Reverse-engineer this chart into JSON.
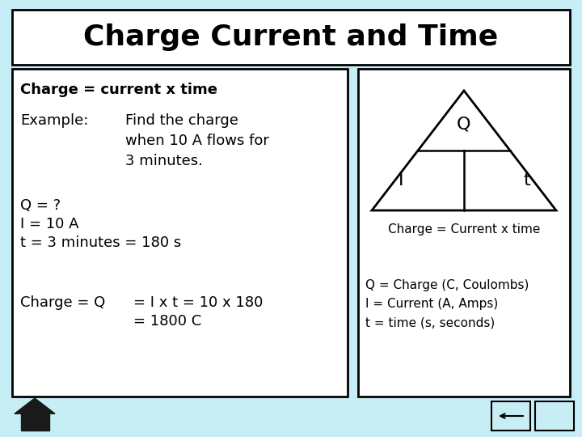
{
  "title": "Charge Current and Time",
  "title_fontsize": 26,
  "title_bg": "#ffffff",
  "main_bg": "#c8eef5",
  "box_bg": "#ffffff",
  "right_top_label": "Charge = Current x time",
  "right_bottom_labels": "Q = Charge (C, Coulombs)\nI = Current (A, Amps)\nt = time (s, seconds)",
  "triangle_Q": "Q",
  "triangle_I": "I",
  "triangle_t": "t",
  "font_family": "Comic Sans MS",
  "text_fontsize": 13,
  "small_fontsize": 11,
  "tri_fontsize": 16
}
